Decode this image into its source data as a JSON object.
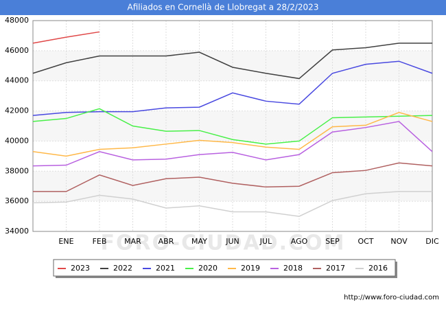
{
  "chart_data": {
    "type": "line",
    "title": "Afiliados en Cornellà de Llobregat a 28/2/2023",
    "categories": [
      null,
      "ENE",
      "FEB",
      "MAR",
      "ABR",
      "MAY",
      "JUN",
      "JUL",
      "AGO",
      "SEP",
      "OCT",
      "NOV",
      "DIC"
    ],
    "series": [
      {
        "name": "2023",
        "color": "#e04848",
        "values": [
          46500,
          46900,
          47250,
          null,
          null,
          null,
          null,
          null,
          null,
          null,
          null,
          null,
          null
        ]
      },
      {
        "name": "2022",
        "color": "#404040",
        "values": [
          44500,
          45200,
          45650,
          45650,
          45650,
          45900,
          44900,
          44500,
          44150,
          46050,
          46200,
          46500,
          46500
        ]
      },
      {
        "name": "2021",
        "color": "#4848e0",
        "values": [
          41700,
          41900,
          41950,
          41950,
          42200,
          42250,
          43200,
          42650,
          42450,
          44500,
          45100,
          45300,
          44500
        ]
      },
      {
        "name": "2020",
        "color": "#48f048",
        "values": [
          41300,
          41500,
          42150,
          41000,
          40650,
          40700,
          40100,
          39800,
          40000,
          41550,
          41600,
          41650,
          41700
        ]
      },
      {
        "name": "2019",
        "color": "#ffb848",
        "values": [
          39300,
          39000,
          39450,
          39550,
          39800,
          40050,
          39900,
          39600,
          39450,
          40950,
          41050,
          41900,
          41300
        ]
      },
      {
        "name": "2018",
        "color": "#b860e0",
        "values": [
          38350,
          38400,
          39300,
          38750,
          38800,
          39100,
          39250,
          38750,
          39100,
          40600,
          40900,
          41300,
          39300
        ]
      },
      {
        "name": "2017",
        "color": "#b06060",
        "values": [
          36650,
          36650,
          37750,
          37050,
          37500,
          37600,
          37200,
          36950,
          37000,
          37900,
          38050,
          38550,
          38350
        ]
      },
      {
        "name": "2016",
        "color": "#d0d0d0",
        "values": [
          35900,
          35950,
          36400,
          36150,
          35550,
          35700,
          35300,
          35300,
          35000,
          36050,
          36500,
          36650,
          36650
        ]
      }
    ],
    "ylim": [
      34000,
      48000
    ],
    "yticks": [
      34000,
      36000,
      38000,
      40000,
      42000,
      44000,
      46000,
      48000
    ],
    "grid": true,
    "legend": "bottom",
    "watermark": "FORO-CIUDAD.COM",
    "source": "http://www.foro-ciudad.com"
  }
}
